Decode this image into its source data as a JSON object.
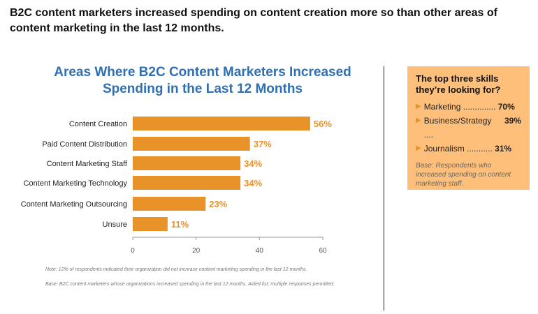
{
  "headline": "B2C content marketers increased spending on content creation more so than other areas of content marketing in the last 12 months.",
  "chart_data": {
    "type": "bar",
    "orientation": "horizontal",
    "title": "Areas Where B2C Content Marketers Increased Spending in the Last 12 Months",
    "categories": [
      "Content Creation",
      "Paid Content Distribution",
      "Content Marketing Staff",
      "Content Marketing Technology",
      "Content Marketing Outsourcing",
      "Unsure"
    ],
    "values": [
      56,
      37,
      34,
      34,
      23,
      11
    ],
    "value_labels": [
      "56%",
      "37%",
      "34%",
      "34%",
      "23%",
      "11%"
    ],
    "xlim": [
      0,
      60
    ],
    "xticks": [
      0,
      20,
      40,
      60
    ],
    "bar_color": "#E8922A",
    "grid": false
  },
  "notes": [
    "Note: 12% of respondents indicated their organization did not increase content marketing spending in the last 12 months.",
    "Base: B2C content marketers whose organizations increased spending in the last 12 months. Aided list; multiple responses permitted."
  ],
  "sidebar": {
    "title": "The top three skills they’re looking for?",
    "skills": [
      {
        "label": "Marketing ..............",
        "value": "70%"
      },
      {
        "label": "Business/Strategy ....",
        "value": "39%"
      },
      {
        "label": "Journalism ...........",
        "value": "31%"
      }
    ],
    "base": "Base: Respondents who increased spending on content marketing staff.",
    "bg_color": "#FDBF7A"
  }
}
